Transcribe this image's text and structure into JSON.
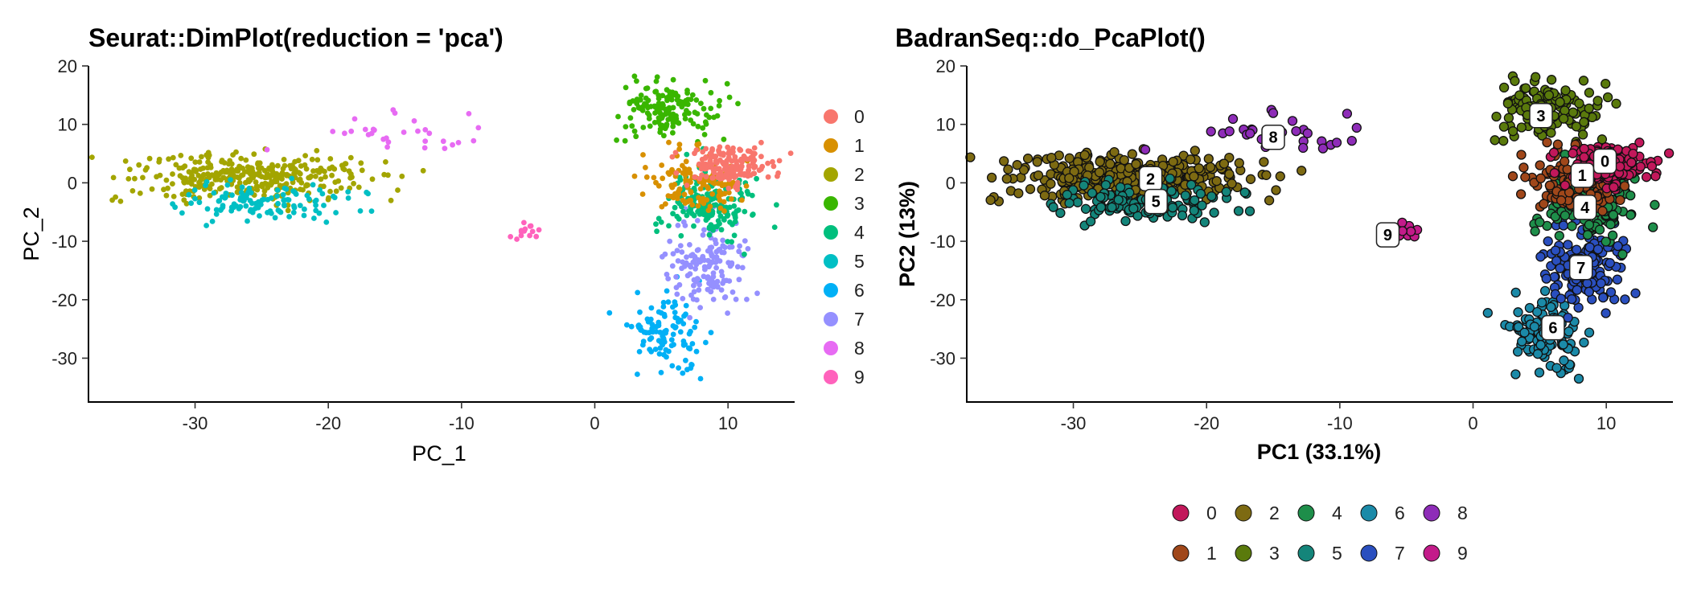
{
  "chart_data": [
    {
      "type": "scatter",
      "title": "Seurat::DimPlot(reduction = 'pca')",
      "xlabel": "PC_1",
      "ylabel": "PC_2",
      "xlim": [
        -38,
        15
      ],
      "ylim": [
        -37.5,
        20
      ],
      "xticks": [
        -30,
        -20,
        -10,
        0,
        10
      ],
      "yticks": [
        20,
        10,
        0,
        -10,
        -20,
        -30
      ],
      "legend_position": "right",
      "grid": false,
      "labels_on_plot": false,
      "cluster_colors": [
        "#F8766D",
        "#D89000",
        "#A3A500",
        "#39B600",
        "#00BF7D",
        "#00BFC4",
        "#00B0F6",
        "#9590FF",
        "#E76BF3",
        "#FF62BC"
      ],
      "series": [
        {
          "name": "0",
          "centroid": [
            10,
            3
          ],
          "spread": [
            1.6,
            1.6
          ],
          "approx_points": 180
        },
        {
          "name": "1",
          "centroid": [
            7.5,
            0
          ],
          "spread": [
            1.8,
            2.5
          ],
          "approx_points": 130
        },
        {
          "name": "2",
          "centroid": [
            -26,
            1
          ],
          "spread": [
            4.5,
            2.0
          ],
          "approx_points": 340
        },
        {
          "name": "3",
          "centroid": [
            5.5,
            12.5
          ],
          "spread": [
            1.8,
            2.2
          ],
          "approx_points": 160
        },
        {
          "name": "4",
          "centroid": [
            8.5,
            -3.5
          ],
          "spread": [
            1.6,
            3.0
          ],
          "approx_points": 180
        },
        {
          "name": "5",
          "centroid": [
            -24.5,
            -3.5
          ],
          "spread": [
            3.5,
            1.5
          ],
          "approx_points": 120
        },
        {
          "name": "6",
          "centroid": [
            5.5,
            -26
          ],
          "spread": [
            1.4,
            3.5
          ],
          "approx_points": 110
        },
        {
          "name": "7",
          "centroid": [
            8.5,
            -14
          ],
          "spread": [
            1.4,
            4.0
          ],
          "approx_points": 150
        },
        {
          "name": "8",
          "centroid": [
            -15,
            8
          ],
          "spread": [
            3.5,
            1.8
          ],
          "approx_points": 30
        },
        {
          "name": "9",
          "centroid": [
            -5,
            -8.5
          ],
          "spread": [
            0.8,
            0.7
          ],
          "approx_points": 14
        }
      ]
    },
    {
      "type": "scatter",
      "title": "BadranSeq::do_PcaPlot()",
      "xlabel": "PC1 (33.1%)",
      "ylabel": "PC2 (13%)",
      "xlim": [
        -38,
        15
      ],
      "ylim": [
        -37.5,
        20
      ],
      "xticks": [
        -30,
        -20,
        -10,
        0,
        10
      ],
      "yticks": [
        20,
        10,
        0,
        -10,
        -20,
        -30
      ],
      "legend_position": "bottom",
      "grid": false,
      "labels_on_plot": true,
      "cluster_colors": [
        "#C2185B",
        "#A0471A",
        "#7D6A12",
        "#5A7A0C",
        "#1E8E4A",
        "#14857A",
        "#1B8AA8",
        "#2A4FBF",
        "#8E2CB8",
        "#C31B8A"
      ],
      "series": [
        {
          "name": "0",
          "centroid": [
            10,
            3
          ],
          "label_pos": [
            9.9,
            3.7
          ],
          "spread": [
            1.6,
            1.6
          ],
          "approx_points": 180
        },
        {
          "name": "1",
          "centroid": [
            7.5,
            0
          ],
          "label_pos": [
            8.2,
            1.3
          ],
          "spread": [
            1.8,
            2.5
          ],
          "approx_points": 130
        },
        {
          "name": "2",
          "centroid": [
            -26,
            1
          ],
          "label_pos": [
            -24.2,
            0.7
          ],
          "spread": [
            4.5,
            2.0
          ],
          "approx_points": 340
        },
        {
          "name": "3",
          "centroid": [
            5.5,
            12.5
          ],
          "label_pos": [
            5.1,
            11.5
          ],
          "spread": [
            1.8,
            2.2
          ],
          "approx_points": 160
        },
        {
          "name": "4",
          "centroid": [
            8.5,
            -3.5
          ],
          "label_pos": [
            8.4,
            -4.2
          ],
          "spread": [
            1.6,
            3.0
          ],
          "approx_points": 180
        },
        {
          "name": "5",
          "centroid": [
            -24.5,
            -3.5
          ],
          "label_pos": [
            -23.8,
            -3.2
          ],
          "spread": [
            3.5,
            1.5
          ],
          "approx_points": 120
        },
        {
          "name": "6",
          "centroid": [
            5.5,
            -26
          ],
          "label_pos": [
            6.0,
            -24.8
          ],
          "spread": [
            1.4,
            3.5
          ],
          "approx_points": 110
        },
        {
          "name": "7",
          "centroid": [
            8.5,
            -14
          ],
          "label_pos": [
            8.1,
            -14.5
          ],
          "spread": [
            1.4,
            4.0
          ],
          "approx_points": 150
        },
        {
          "name": "8",
          "centroid": [
            -15,
            8
          ],
          "label_pos": [
            -15.0,
            7.8
          ],
          "spread": [
            3.5,
            1.8
          ],
          "approx_points": 30
        },
        {
          "name": "9",
          "centroid": [
            -5,
            -8.5
          ],
          "label_pos": [
            -6.4,
            -8.9
          ],
          "spread": [
            0.8,
            0.7
          ],
          "approx_points": 14
        }
      ]
    }
  ]
}
